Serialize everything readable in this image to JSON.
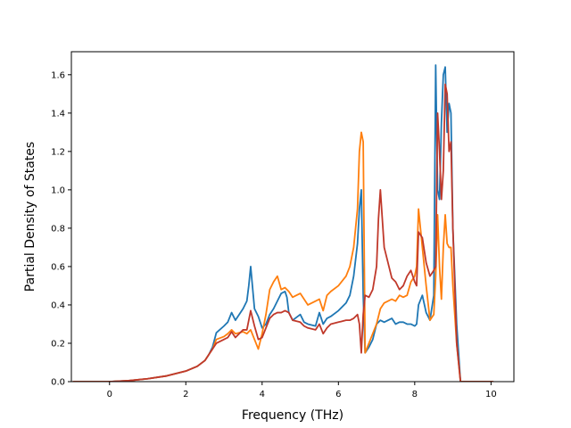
{
  "chart_data": {
    "type": "line",
    "title": "",
    "xlabel": "Frequency (THz)",
    "ylabel": "Partial Density of States",
    "xlim": [
      -1.0,
      10.6
    ],
    "ylim": [
      0.0,
      1.72
    ],
    "xticks": [
      0,
      2,
      4,
      6,
      8,
      10
    ],
    "yticks": [
      0.0,
      0.2,
      0.4,
      0.6,
      0.8,
      1.0,
      1.2,
      1.4,
      1.6
    ],
    "xtick_labels": [
      "0",
      "2",
      "4",
      "6",
      "8",
      "10"
    ],
    "ytick_labels": [
      "0.0",
      "0.2",
      "0.4",
      "0.6",
      "0.8",
      "1.0",
      "1.2",
      "1.4",
      "1.6"
    ],
    "grid": false,
    "legend": "none",
    "series": [
      {
        "color": "#1f77b4",
        "x": [
          -0.95,
          0.0,
          0.5,
          1.0,
          1.5,
          2.0,
          2.3,
          2.5,
          2.6,
          2.7,
          2.8,
          3.0,
          3.1,
          3.2,
          3.3,
          3.5,
          3.6,
          3.65,
          3.7,
          3.8,
          3.9,
          4.0,
          4.1,
          4.2,
          4.3,
          4.4,
          4.5,
          4.6,
          4.65,
          4.7,
          4.8,
          5.0,
          5.1,
          5.2,
          5.4,
          5.5,
          5.6,
          5.7,
          5.8,
          6.0,
          6.2,
          6.3,
          6.4,
          6.5,
          6.55,
          6.6,
          6.65,
          6.7,
          6.8,
          6.9,
          7.0,
          7.1,
          7.2,
          7.4,
          7.5,
          7.6,
          7.7,
          7.8,
          7.9,
          8.0,
          8.05,
          8.1,
          8.2,
          8.3,
          8.4,
          8.5,
          8.55,
          8.6,
          8.65,
          8.7,
          8.75,
          8.8,
          8.85,
          8.9,
          8.95,
          9.0,
          9.1,
          9.2,
          9.5,
          10.05
        ],
        "y": [
          0.0,
          0.0,
          0.005,
          0.015,
          0.03,
          0.055,
          0.08,
          0.11,
          0.14,
          0.18,
          0.255,
          0.29,
          0.31,
          0.36,
          0.32,
          0.38,
          0.42,
          0.5,
          0.6,
          0.38,
          0.34,
          0.28,
          0.3,
          0.35,
          0.38,
          0.42,
          0.46,
          0.47,
          0.44,
          0.36,
          0.32,
          0.35,
          0.31,
          0.3,
          0.29,
          0.36,
          0.3,
          0.33,
          0.34,
          0.37,
          0.41,
          0.45,
          0.55,
          0.72,
          0.9,
          1.0,
          0.45,
          0.15,
          0.18,
          0.22,
          0.3,
          0.32,
          0.31,
          0.33,
          0.3,
          0.31,
          0.31,
          0.3,
          0.3,
          0.29,
          0.3,
          0.4,
          0.45,
          0.36,
          0.32,
          0.45,
          1.65,
          1.0,
          0.95,
          1.35,
          1.6,
          1.64,
          1.3,
          1.45,
          1.4,
          0.8,
          0.3,
          0.0,
          0.0,
          0.0
        ]
      },
      {
        "color": "#ff7f0e",
        "x": [
          -0.95,
          0.0,
          0.5,
          1.0,
          1.5,
          2.0,
          2.3,
          2.5,
          2.6,
          2.7,
          2.8,
          3.0,
          3.1,
          3.2,
          3.3,
          3.5,
          3.6,
          3.7,
          3.8,
          3.9,
          4.0,
          4.1,
          4.2,
          4.3,
          4.4,
          4.5,
          4.6,
          4.7,
          4.8,
          5.0,
          5.1,
          5.2,
          5.4,
          5.5,
          5.6,
          5.7,
          5.8,
          6.0,
          6.2,
          6.3,
          6.4,
          6.5,
          6.55,
          6.6,
          6.65,
          6.7,
          6.8,
          6.9,
          7.0,
          7.1,
          7.2,
          7.4,
          7.5,
          7.6,
          7.7,
          7.8,
          7.9,
          8.0,
          8.05,
          8.1,
          8.2,
          8.3,
          8.4,
          8.5,
          8.55,
          8.6,
          8.65,
          8.7,
          8.75,
          8.8,
          8.85,
          8.9,
          8.95,
          9.0,
          9.1,
          9.2,
          9.5,
          10.05
        ],
        "y": [
          0.0,
          0.0,
          0.005,
          0.015,
          0.03,
          0.055,
          0.08,
          0.11,
          0.14,
          0.17,
          0.22,
          0.235,
          0.25,
          0.27,
          0.25,
          0.26,
          0.25,
          0.27,
          0.22,
          0.17,
          0.25,
          0.35,
          0.48,
          0.52,
          0.55,
          0.48,
          0.49,
          0.47,
          0.44,
          0.46,
          0.43,
          0.4,
          0.42,
          0.43,
          0.37,
          0.45,
          0.47,
          0.5,
          0.55,
          0.6,
          0.7,
          0.9,
          1.2,
          1.3,
          1.25,
          0.15,
          0.2,
          0.25,
          0.3,
          0.38,
          0.41,
          0.43,
          0.42,
          0.45,
          0.44,
          0.45,
          0.52,
          0.55,
          0.6,
          0.9,
          0.7,
          0.5,
          0.32,
          0.35,
          0.55,
          0.87,
          0.6,
          0.43,
          0.7,
          0.87,
          0.72,
          0.7,
          0.7,
          0.5,
          0.2,
          0.0,
          0.0,
          0.0
        ]
      },
      {
        "color": "#c0392b",
        "x": [
          -0.95,
          0.0,
          0.5,
          1.0,
          1.5,
          2.0,
          2.3,
          2.5,
          2.6,
          2.7,
          2.8,
          3.0,
          3.1,
          3.2,
          3.3,
          3.5,
          3.6,
          3.7,
          3.8,
          3.9,
          4.0,
          4.1,
          4.2,
          4.3,
          4.4,
          4.5,
          4.6,
          4.7,
          4.8,
          5.0,
          5.1,
          5.2,
          5.4,
          5.5,
          5.6,
          5.7,
          5.8,
          6.0,
          6.2,
          6.3,
          6.4,
          6.5,
          6.55,
          6.6,
          6.65,
          6.7,
          6.8,
          6.9,
          7.0,
          7.05,
          7.1,
          7.2,
          7.4,
          7.5,
          7.6,
          7.7,
          7.8,
          7.9,
          8.0,
          8.05,
          8.1,
          8.2,
          8.3,
          8.4,
          8.5,
          8.55,
          8.6,
          8.65,
          8.7,
          8.75,
          8.8,
          8.85,
          8.9,
          8.95,
          9.0,
          9.1,
          9.2,
          9.5,
          10.05
        ],
        "y": [
          0.0,
          0.0,
          0.005,
          0.015,
          0.03,
          0.055,
          0.08,
          0.11,
          0.14,
          0.17,
          0.2,
          0.22,
          0.23,
          0.26,
          0.23,
          0.27,
          0.27,
          0.37,
          0.29,
          0.22,
          0.23,
          0.28,
          0.33,
          0.35,
          0.36,
          0.36,
          0.37,
          0.36,
          0.32,
          0.31,
          0.29,
          0.28,
          0.27,
          0.3,
          0.25,
          0.28,
          0.3,
          0.31,
          0.32,
          0.32,
          0.33,
          0.35,
          0.3,
          0.15,
          0.35,
          0.45,
          0.44,
          0.48,
          0.6,
          0.85,
          1.0,
          0.7,
          0.54,
          0.52,
          0.48,
          0.5,
          0.55,
          0.58,
          0.52,
          0.5,
          0.78,
          0.75,
          0.62,
          0.55,
          0.58,
          0.6,
          1.4,
          1.2,
          0.95,
          1.1,
          1.55,
          1.5,
          1.2,
          1.25,
          0.8,
          0.2,
          0.0,
          0.0,
          0.0
        ]
      }
    ]
  }
}
